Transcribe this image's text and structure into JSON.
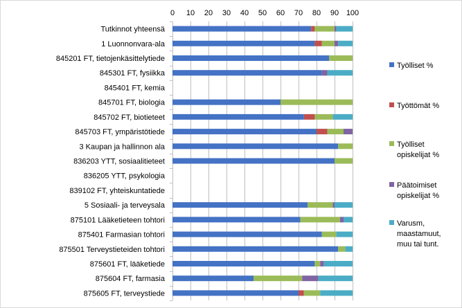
{
  "chart_data": {
    "type": "bar",
    "orientation": "horizontal",
    "stacked": true,
    "xlim": [
      0,
      100
    ],
    "xticks": [
      0,
      10,
      20,
      30,
      40,
      50,
      60,
      70,
      80,
      90,
      100
    ],
    "x_axis_position": "top",
    "grid": true,
    "legend_position": "right",
    "categories": [
      "Tutkinnot yhteensä",
      "1 Luonnonvara-ala",
      "845201 FT, tietojenkäsittelytiede",
      "845301 FT, fysiikka",
      "845401 FT, kemia",
      "845701 FT, biologia",
      "845702 FT, biotieteet",
      "845703 FT, ympäristötiede",
      "3 Kaupan ja hallinnon ala",
      "836203 YTT,  sosiaalitieteet",
      "836205 YTT,  psykologia",
      "839102 FT, yhteiskuntatiede",
      "5 Sosiaali- ja terveysala",
      "875101 Lääketieteen tohtori",
      "875401 Farmasian tohtori",
      "875501 Terveystieteiden tohtori",
      "875601 FT, lääketiede",
      "875604 FT, farmasia",
      "875605 FT, terveystiede"
    ],
    "series": [
      {
        "name": "Työlliset %",
        "color": "#4472c4",
        "values": [
          77,
          79,
          87,
          83,
          0,
          60,
          73,
          80,
          92,
          90,
          0,
          0,
          75,
          71,
          83,
          92,
          79,
          45,
          70
        ]
      },
      {
        "name": "Työttömät %",
        "color": "#c0504d",
        "values": [
          2,
          4,
          0,
          0,
          0,
          0,
          6,
          6,
          0,
          0,
          0,
          0,
          0,
          0,
          0,
          0,
          0,
          0,
          3
        ]
      },
      {
        "name": "Työlliset opiskelijat %",
        "color": "#9bbb59",
        "values": [
          11,
          7,
          13,
          0,
          0,
          40,
          10,
          9,
          8,
          10,
          0,
          0,
          14,
          22,
          8,
          4,
          3,
          27,
          9
        ]
      },
      {
        "name": "Päätoimiset opiskelijat %",
        "color": "#8064a2",
        "values": [
          1,
          2,
          0,
          3,
          0,
          0,
          0,
          5,
          0,
          0,
          0,
          0,
          1,
          2,
          0,
          0,
          2,
          9,
          0
        ]
      },
      {
        "name": "Varusm, maastamuut, muu tai tunt.",
        "color": "#4bacc6",
        "values": [
          9,
          8,
          0,
          14,
          0,
          0,
          11,
          0,
          0,
          0,
          0,
          0,
          10,
          5,
          9,
          4,
          16,
          19,
          18
        ]
      }
    ],
    "legend": [
      {
        "lines": [
          "Työlliset %"
        ],
        "color": "#4472c4"
      },
      {
        "lines": [
          "Työttömät %"
        ],
        "color": "#c0504d"
      },
      {
        "lines": [
          "Työlliset",
          "opiskelijat %"
        ],
        "color": "#9bbb59"
      },
      {
        "lines": [
          "Päätoimiset",
          "opiskelijat %"
        ],
        "color": "#8064a2"
      },
      {
        "lines": [
          "Varusm,",
          "maastamuut,",
          "muu tai tunt."
        ],
        "color": "#4bacc6"
      }
    ]
  }
}
